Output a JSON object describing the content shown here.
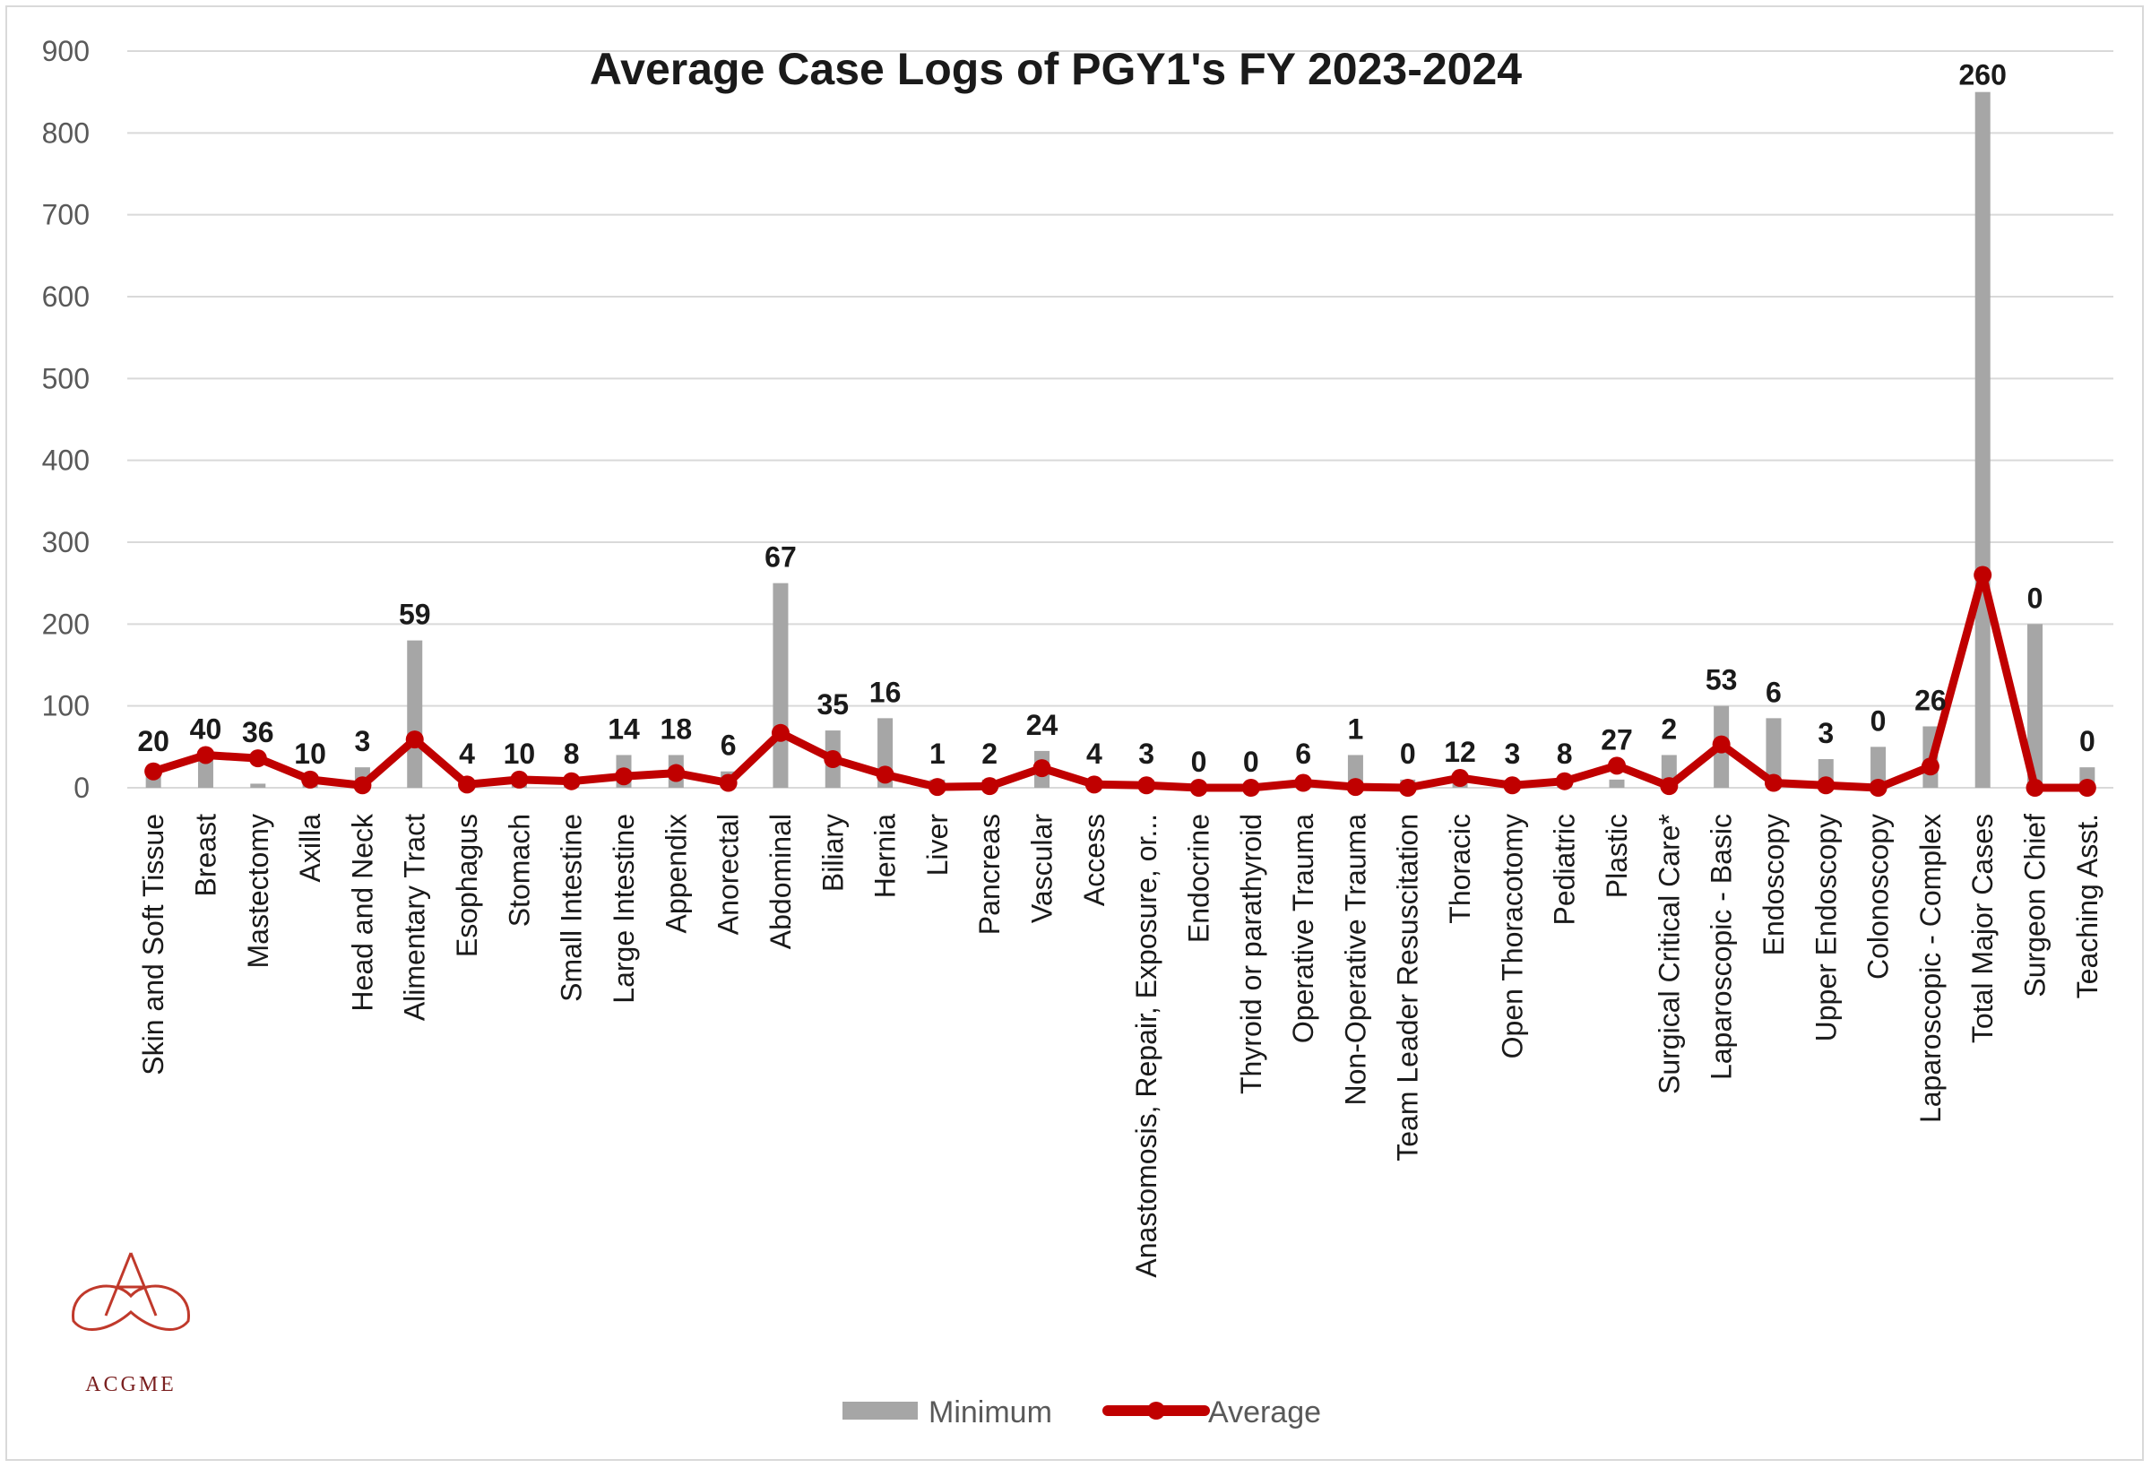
{
  "chart_data": {
    "type": "bar+line",
    "title": "Average Case Logs of PGY1's FY 2023-2024",
    "ylim": [
      0,
      900
    ],
    "yticks": [
      0,
      100,
      200,
      300,
      400,
      500,
      600,
      700,
      800,
      900
    ],
    "grid": true,
    "legend_position": "bottom",
    "categories": [
      "Skin and Soft Tissue",
      "Breast",
      "Mastectomy",
      "Axilla",
      "Head and Neck",
      "Alimentary Tract",
      "Esophagus",
      "Stomach",
      "Small Intestine",
      "Large Intestine",
      "Appendix",
      "Anorectal",
      "Abdominal",
      "Biliary",
      "Hernia",
      "Liver",
      "Pancreas",
      "Vascular",
      "Access",
      "Anastomosis, Repair, Exposure, or...",
      "Endocrine",
      "Thyroid or parathyroid",
      "Operative Trauma",
      "Non-Operative Trauma",
      "Team Leader Resuscitation",
      "Thoracic",
      "Open Thoracotomy",
      "Pediatric",
      "Plastic",
      "Surgical Critical Care*",
      "Laparoscopic - Basic",
      "Endoscopy",
      "Upper Endoscopy",
      "Colonoscopy",
      "Laparoscopic - Complex",
      "Total Major Cases",
      "Surgeon Chief",
      "Teaching Asst."
    ],
    "series": [
      {
        "name": "Minimum",
        "type": "bar",
        "color": "#a6a6a6",
        "values": [
          25,
          40,
          5,
          10,
          25,
          180,
          10,
          10,
          10,
          40,
          40,
          20,
          250,
          70,
          85,
          10,
          10,
          45,
          10,
          10,
          0,
          0,
          10,
          40,
          10,
          10,
          10,
          10,
          10,
          40,
          100,
          85,
          35,
          50,
          75,
          850,
          200,
          25
        ]
      },
      {
        "name": "Average",
        "type": "line",
        "color": "#c00000",
        "values": [
          20,
          40,
          36,
          10,
          3,
          59,
          4,
          10,
          8,
          14,
          18,
          6,
          67,
          35,
          16,
          1,
          2,
          24,
          4,
          3,
          0,
          0,
          6,
          1,
          0,
          12,
          3,
          8,
          27,
          2,
          53,
          6,
          3,
          0,
          26,
          260,
          0,
          0
        ]
      }
    ]
  },
  "logo": {
    "text": "ACGME",
    "color": "#b22222"
  }
}
